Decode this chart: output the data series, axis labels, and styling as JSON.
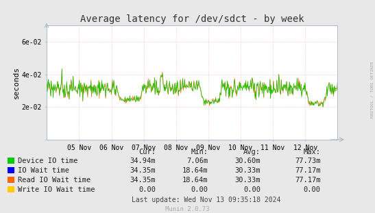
{
  "title": "Average latency for /dev/sdct - by week",
  "ylabel": "seconds",
  "background_color": "#e8e8e8",
  "plot_bg_color": "#ffffff",
  "grid_color": "#ffaaaa",
  "x_labels": [
    "05 Nov",
    "06 Nov",
    "07 Nov",
    "08 Nov",
    "09 Nov",
    "10 Nov",
    "11 Nov",
    "12 Nov"
  ],
  "ytick_vals": [
    0.0,
    0.02,
    0.04,
    0.06
  ],
  "ytick_labels": [
    "",
    "2e-02",
    "4e-02",
    "6e-02"
  ],
  "ylim": [
    0.0,
    0.07
  ],
  "legend": [
    {
      "label": "Device IO time",
      "color": "#00cc00",
      "cur": "34.94m",
      "min": "7.06m",
      "avg": "30.60m",
      "max": "77.73m"
    },
    {
      "label": "IO Wait time",
      "color": "#0000ff",
      "cur": "34.35m",
      "min": "18.64m",
      "avg": "30.33m",
      "max": "77.17m"
    },
    {
      "label": "Read IO Wait time",
      "color": "#ff6600",
      "cur": "34.35m",
      "min": "18.64m",
      "avg": "30.33m",
      "max": "77.17m"
    },
    {
      "label": "Write IO Wait time",
      "color": "#ffcc00",
      "cur": "0.00",
      "min": "0.00",
      "avg": "0.00",
      "max": "0.00"
    }
  ],
  "footer": "Last update: Wed Nov 13 09:35:18 2024",
  "watermark": "Munin 2.0.73",
  "side_label": "RRDTOOL / TOBI OETIKER",
  "base_value": 0.0315,
  "noise_std": 0.0028
}
